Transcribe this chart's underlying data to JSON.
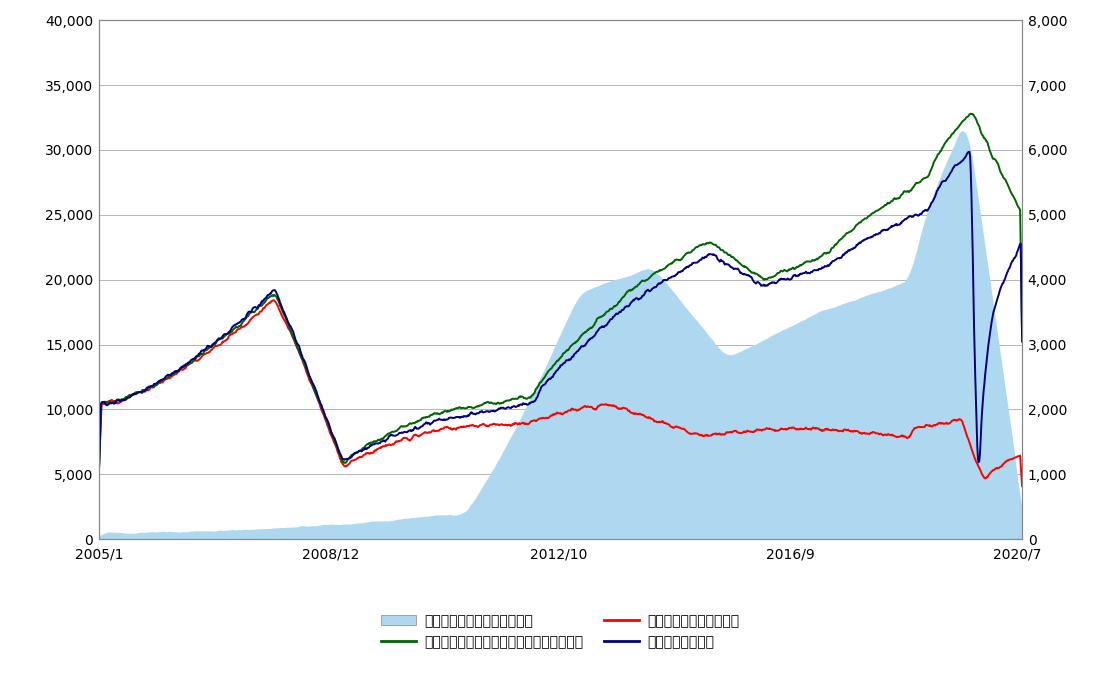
{
  "left_ylim": [
    0,
    40000
  ],
  "right_ylim": [
    0,
    8000
  ],
  "left_yticks": [
    0,
    5000,
    10000,
    15000,
    20000,
    25000,
    30000,
    35000,
    40000
  ],
  "right_yticks": [
    0,
    1000,
    2000,
    3000,
    4000,
    5000,
    6000,
    7000,
    8000
  ],
  "xtick_labels": [
    "2005/1",
    "2008/12",
    "2012/10",
    "2016/9",
    "2020/7"
  ],
  "legend_area": "純資産総額（億円）：右目盛",
  "legend_green": "基準価額（分配金再投資）（円）：左目盛",
  "legend_red": "基準価額（円）：左目盛",
  "legend_navy": "参考指数：左目盛",
  "area_color": "#add8f0",
  "green_color": "#006400",
  "red_color": "#ff0000",
  "navy_color": "#000080",
  "background_color": "#ffffff",
  "grid_color": "#aaaaaa",
  "spine_color": "#888888"
}
